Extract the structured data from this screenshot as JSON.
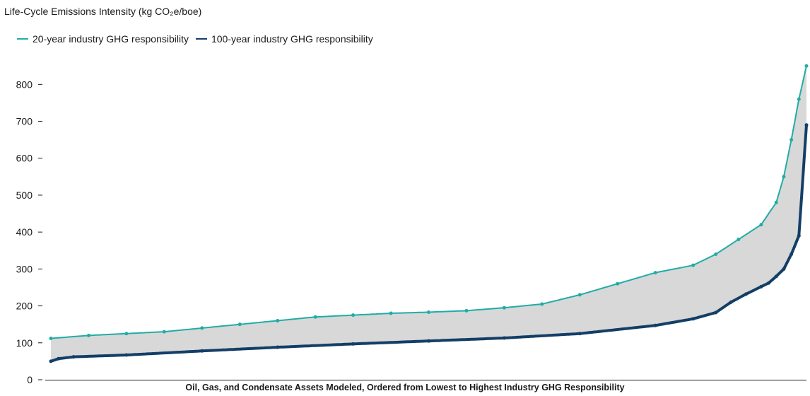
{
  "chart_data": {
    "type": "line",
    "ylabel": "Life-Cycle Emissions Intensity (kg CO₂e/boe)",
    "xlabel": "Oil, Gas, and Condensate Assets Modeled, Ordered from Lowest to Highest Industry GHG Responsibility",
    "ylim": [
      0,
      860
    ],
    "yticks": [
      0,
      100,
      200,
      300,
      400,
      500,
      600,
      700,
      800
    ],
    "grid": false,
    "legend_position": "top-left",
    "shaded_band_between_series": true,
    "series": [
      {
        "name": "20-year industry GHG responsibility",
        "color": "#20aca6",
        "x": [
          0,
          0.05,
          0.1,
          0.15,
          0.2,
          0.25,
          0.3,
          0.35,
          0.4,
          0.45,
          0.5,
          0.55,
          0.6,
          0.65,
          0.7,
          0.75,
          0.8,
          0.85,
          0.88,
          0.91,
          0.94,
          0.96,
          0.97,
          0.98,
          0.99,
          1.0
        ],
        "values": [
          112,
          120,
          125,
          130,
          140,
          150,
          160,
          170,
          175,
          180,
          183,
          187,
          195,
          205,
          230,
          260,
          290,
          310,
          340,
          380,
          420,
          480,
          550,
          650,
          760,
          850
        ]
      },
      {
        "name": "100-year industry GHG responsibility",
        "color": "#133e66",
        "x": [
          0,
          0.01,
          0.03,
          0.1,
          0.2,
          0.3,
          0.4,
          0.5,
          0.6,
          0.7,
          0.8,
          0.85,
          0.88,
          0.9,
          0.92,
          0.94,
          0.95,
          0.96,
          0.97,
          0.98,
          0.99,
          1.0
        ],
        "values": [
          50,
          57,
          62,
          67,
          78,
          88,
          97,
          105,
          113,
          125,
          147,
          165,
          182,
          210,
          232,
          252,
          262,
          280,
          300,
          340,
          390,
          690
        ]
      }
    ]
  }
}
